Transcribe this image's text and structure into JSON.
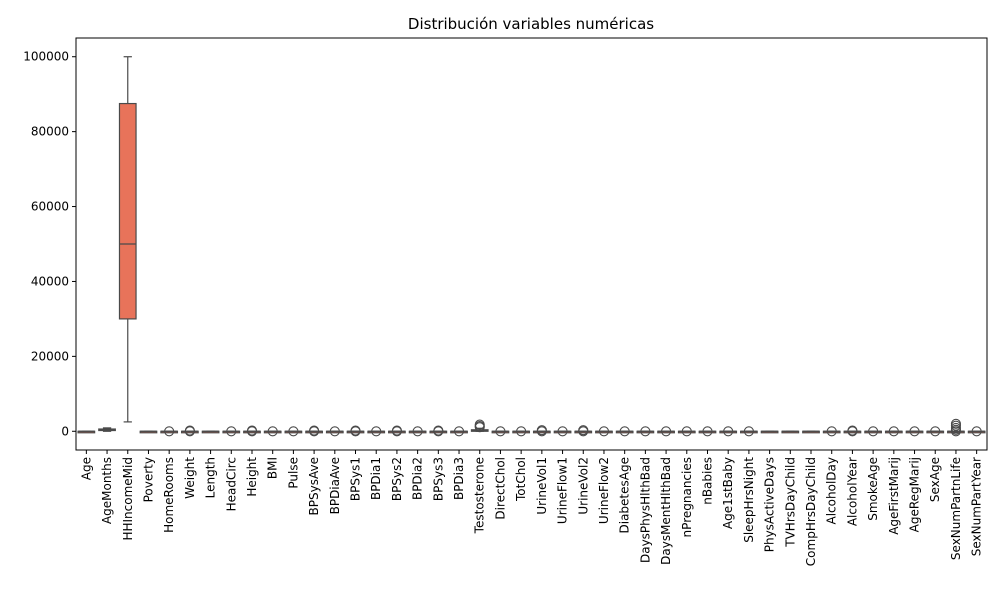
{
  "chart_data": {
    "type": "box",
    "title": "Distribución variables numéricas",
    "xlabel": "",
    "ylabel": "",
    "ylim": [
      -5000,
      105000
    ],
    "yticks": [
      0,
      20000,
      40000,
      60000,
      80000,
      100000
    ],
    "ytick_labels": [
      "0",
      "20000",
      "40000",
      "60000",
      "80000",
      "100000"
    ],
    "grid": false,
    "categories": [
      "Age",
      "AgeMonths",
      "HHIncomeMid",
      "Poverty",
      "HomeRooms",
      "Weight",
      "Length",
      "HeadCirc",
      "Height",
      "BMI",
      "Pulse",
      "BPSysAve",
      "BPDiaAve",
      "BPSys1",
      "BPDia1",
      "BPSys2",
      "BPDia2",
      "BPSys3",
      "BPDia3",
      "Testosterone",
      "DirectChol",
      "TotChol",
      "UrineVol1",
      "UrineFlow1",
      "UrineVol2",
      "UrineFlow2",
      "DiabetesAge",
      "DaysPhysHlthBad",
      "DaysMentHlthBad",
      "nPregnancies",
      "nBabies",
      "Age1stBaby",
      "SleepHrsNight",
      "PhysActiveDays",
      "TVHrsDayChild",
      "CompHrsDayChild",
      "AlcoholDay",
      "AlcoholYear",
      "SmokeAge",
      "AgeFirstMarij",
      "AgeRegMarij",
      "SexAge",
      "SexNumPartnLife",
      "SexNumPartYear"
    ],
    "boxes": [
      {
        "min": 0,
        "q1": 0,
        "median": 0,
        "q3": 0,
        "max": 0,
        "outliers": []
      },
      {
        "min": 0,
        "q1": 200,
        "median": 400,
        "q3": 600,
        "max": 900,
        "outliers": []
      },
      {
        "min": 2500,
        "q1": 30000,
        "median": 50000,
        "q3": 87500,
        "max": 100000,
        "outliers": []
      },
      {
        "min": 0,
        "q1": 0,
        "median": 0,
        "q3": 0,
        "max": 0,
        "outliers": []
      },
      {
        "min": 0,
        "q1": 0,
        "median": 0,
        "q3": 0,
        "max": 0,
        "outliers": [
          0
        ]
      },
      {
        "min": 0,
        "q1": 0,
        "median": 0,
        "q3": 0,
        "max": 0,
        "outliers": [
          0,
          200
        ]
      },
      {
        "min": 0,
        "q1": 0,
        "median": 0,
        "q3": 0,
        "max": 0,
        "outliers": []
      },
      {
        "min": 0,
        "q1": 0,
        "median": 0,
        "q3": 0,
        "max": 0,
        "outliers": [
          0
        ]
      },
      {
        "min": 0,
        "q1": 0,
        "median": 0,
        "q3": 0,
        "max": 0,
        "outliers": [
          0,
          200
        ]
      },
      {
        "min": 0,
        "q1": 0,
        "median": 0,
        "q3": 0,
        "max": 0,
        "outliers": [
          0
        ]
      },
      {
        "min": 0,
        "q1": 0,
        "median": 0,
        "q3": 0,
        "max": 0,
        "outliers": [
          0
        ]
      },
      {
        "min": 0,
        "q1": 0,
        "median": 0,
        "q3": 0,
        "max": 0,
        "outliers": [
          0,
          200
        ]
      },
      {
        "min": 0,
        "q1": 0,
        "median": 0,
        "q3": 0,
        "max": 0,
        "outliers": [
          0
        ]
      },
      {
        "min": 0,
        "q1": 0,
        "median": 0,
        "q3": 0,
        "max": 0,
        "outliers": [
          0,
          200
        ]
      },
      {
        "min": 0,
        "q1": 0,
        "median": 0,
        "q3": 0,
        "max": 0,
        "outliers": [
          0
        ]
      },
      {
        "min": 0,
        "q1": 0,
        "median": 0,
        "q3": 0,
        "max": 0,
        "outliers": [
          0,
          200
        ]
      },
      {
        "min": 0,
        "q1": 0,
        "median": 0,
        "q3": 0,
        "max": 0,
        "outliers": [
          0
        ]
      },
      {
        "min": 0,
        "q1": 0,
        "median": 0,
        "q3": 0,
        "max": 0,
        "outliers": [
          0,
          200
        ]
      },
      {
        "min": 0,
        "q1": 0,
        "median": 0,
        "q3": 0,
        "max": 0,
        "outliers": [
          0
        ]
      },
      {
        "min": 0,
        "q1": 100,
        "median": 200,
        "q3": 400,
        "max": 800,
        "outliers": [
          1100,
          1400,
          1800
        ]
      },
      {
        "min": 0,
        "q1": 0,
        "median": 0,
        "q3": 0,
        "max": 0,
        "outliers": [
          0
        ]
      },
      {
        "min": 0,
        "q1": 0,
        "median": 0,
        "q3": 0,
        "max": 0,
        "outliers": [
          0
        ]
      },
      {
        "min": 0,
        "q1": 0,
        "median": 0,
        "q3": 0,
        "max": 0,
        "outliers": [
          0,
          300
        ]
      },
      {
        "min": 0,
        "q1": 0,
        "median": 0,
        "q3": 0,
        "max": 0,
        "outliers": [
          0
        ]
      },
      {
        "min": 0,
        "q1": 0,
        "median": 0,
        "q3": 0,
        "max": 0,
        "outliers": [
          0,
          300
        ]
      },
      {
        "min": 0,
        "q1": 0,
        "median": 0,
        "q3": 0,
        "max": 0,
        "outliers": [
          0
        ]
      },
      {
        "min": 0,
        "q1": 0,
        "median": 0,
        "q3": 0,
        "max": 0,
        "outliers": [
          0
        ]
      },
      {
        "min": 0,
        "q1": 0,
        "median": 0,
        "q3": 0,
        "max": 0,
        "outliers": [
          0
        ]
      },
      {
        "min": 0,
        "q1": 0,
        "median": 0,
        "q3": 0,
        "max": 0,
        "outliers": [
          0
        ]
      },
      {
        "min": 0,
        "q1": 0,
        "median": 0,
        "q3": 0,
        "max": 0,
        "outliers": [
          0
        ]
      },
      {
        "min": 0,
        "q1": 0,
        "median": 0,
        "q3": 0,
        "max": 0,
        "outliers": [
          0
        ]
      },
      {
        "min": 0,
        "q1": 0,
        "median": 0,
        "q3": 0,
        "max": 0,
        "outliers": [
          0
        ]
      },
      {
        "min": 0,
        "q1": 0,
        "median": 0,
        "q3": 0,
        "max": 0,
        "outliers": [
          0
        ]
      },
      {
        "min": 0,
        "q1": 0,
        "median": 0,
        "q3": 0,
        "max": 0,
        "outliers": []
      },
      {
        "min": 0,
        "q1": 0,
        "median": 0,
        "q3": 0,
        "max": 0,
        "outliers": []
      },
      {
        "min": 0,
        "q1": 0,
        "median": 0,
        "q3": 0,
        "max": 0,
        "outliers": []
      },
      {
        "min": 0,
        "q1": 0,
        "median": 0,
        "q3": 0,
        "max": 0,
        "outliers": [
          0
        ]
      },
      {
        "min": 0,
        "q1": 0,
        "median": 0,
        "q3": 0,
        "max": 0,
        "outliers": [
          0,
          200
        ]
      },
      {
        "min": 0,
        "q1": 0,
        "median": 0,
        "q3": 0,
        "max": 0,
        "outliers": [
          0
        ]
      },
      {
        "min": 0,
        "q1": 0,
        "median": 0,
        "q3": 0,
        "max": 0,
        "outliers": [
          0
        ]
      },
      {
        "min": 0,
        "q1": 0,
        "median": 0,
        "q3": 0,
        "max": 0,
        "outliers": [
          0
        ]
      },
      {
        "min": 0,
        "q1": 0,
        "median": 0,
        "q3": 0,
        "max": 0,
        "outliers": [
          0
        ]
      },
      {
        "min": 0,
        "q1": 0,
        "median": 0,
        "q3": 0,
        "max": 0,
        "outliers": [
          0,
          400,
          900,
          1500,
          2000
        ]
      },
      {
        "min": 0,
        "q1": 0,
        "median": 0,
        "q3": 0,
        "max": 0,
        "outliers": [
          0
        ]
      }
    ],
    "colors": {
      "accent": "#e8735a",
      "stroke": "#4a4a4a"
    }
  }
}
